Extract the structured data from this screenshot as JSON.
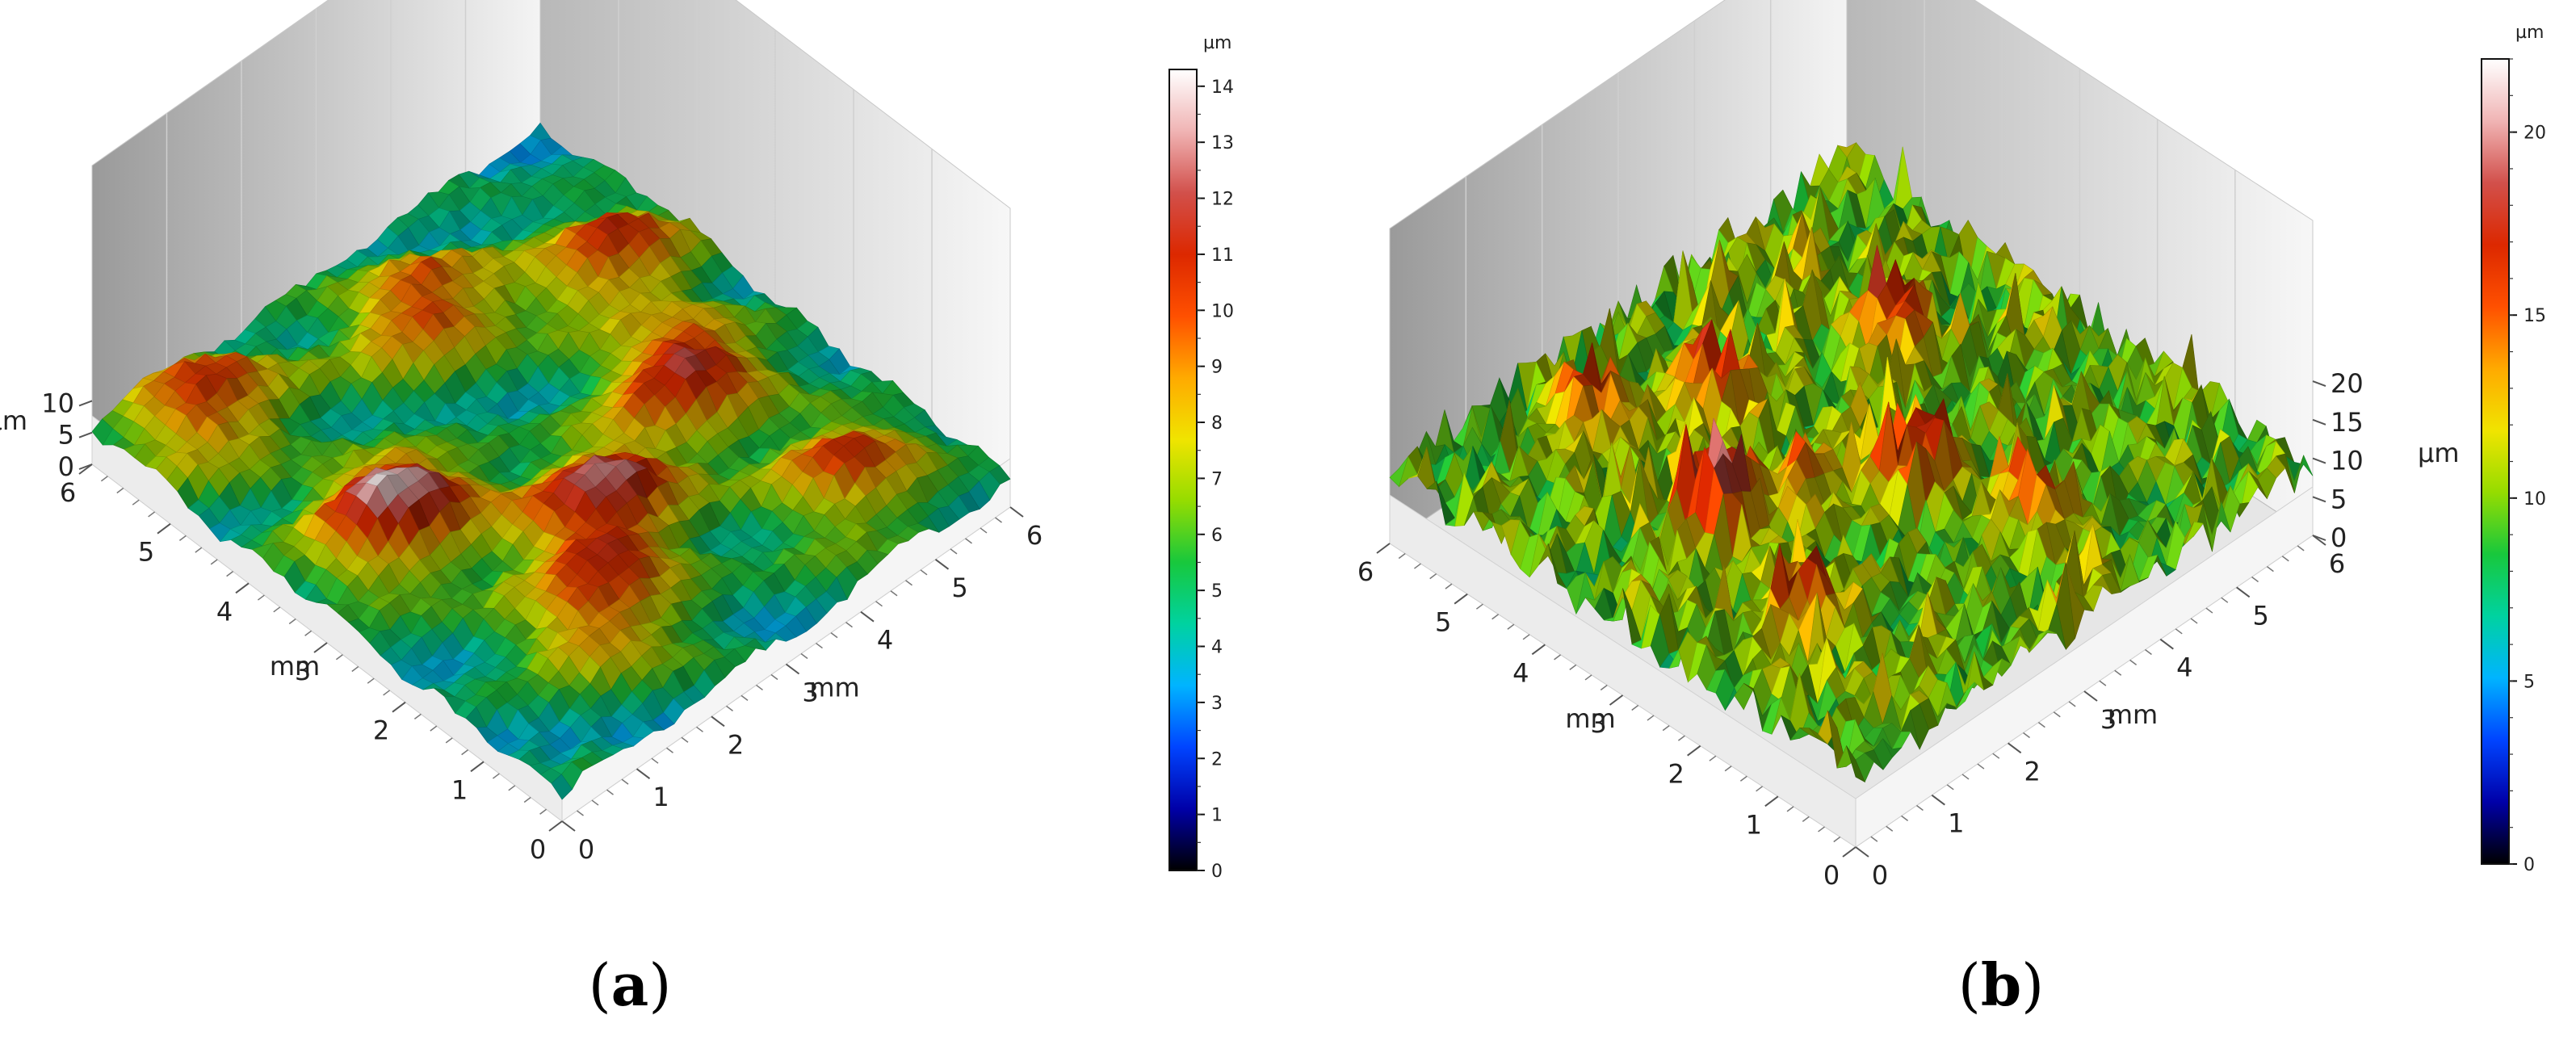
{
  "chart_data": [
    {
      "type": "surface",
      "panel_label": "a",
      "x_axis": {
        "label": "mm",
        "range": [
          0,
          6
        ],
        "ticks": [
          "0",
          "1",
          "2",
          "3",
          "4",
          "5",
          "6"
        ]
      },
      "y_axis": {
        "label": "mm",
        "range": [
          0,
          6
        ],
        "ticks": [
          "0",
          "1",
          "2",
          "3",
          "4",
          "5",
          "6"
        ]
      },
      "z_axis": {
        "label": "µm",
        "range": [
          0,
          14
        ],
        "ticks": [
          "0",
          "5",
          "10"
        ]
      },
      "colorbar": {
        "unit": "µm",
        "range": [
          0,
          14.3
        ],
        "ticks": [
          "0",
          "1",
          "2",
          "3",
          "4",
          "5",
          "6",
          "7",
          "8",
          "9",
          "10",
          "11",
          "12",
          "13",
          "14"
        ],
        "colormap": [
          "#000000",
          "#0000a8",
          "#0044ff",
          "#00b4ff",
          "#00d2a0",
          "#18c83c",
          "#96dc00",
          "#f0e400",
          "#ffaa00",
          "#ff5000",
          "#dc2800",
          "#d2504b",
          "#f0b4b4",
          "#ffffff"
        ]
      },
      "surface_character": "directional ridged texture with several broad peaks",
      "peaks_height_um": [
        13.8,
        12.6,
        12.0,
        11.2,
        11.0,
        10.8,
        10.6,
        10.2
      ]
    },
    {
      "type": "surface",
      "panel_label": "b",
      "x_axis": {
        "label": "mm",
        "range": [
          0,
          6
        ],
        "ticks": [
          "0",
          "1",
          "2",
          "3",
          "4",
          "5",
          "6"
        ]
      },
      "y_axis": {
        "label": "mm",
        "range": [
          0,
          6
        ],
        "ticks": [
          "0",
          "1",
          "2",
          "3",
          "4",
          "5",
          "6"
        ]
      },
      "z_axis": {
        "label": "µm",
        "range": [
          0,
          22
        ],
        "ticks": [
          "0",
          "5",
          "10",
          "15",
          "20"
        ]
      },
      "colorbar": {
        "unit": "µm",
        "range": [
          0,
          22
        ],
        "ticks": [
          "0",
          "5",
          "10",
          "15",
          "20"
        ],
        "colormap": [
          "#000000",
          "#0000a8",
          "#0044ff",
          "#00b4ff",
          "#00d2a0",
          "#18c83c",
          "#96dc00",
          "#f0e400",
          "#ffaa00",
          "#ff5000",
          "#dc2800",
          "#d2504b",
          "#f0b4b4",
          "#ffffff"
        ]
      },
      "surface_character": "dense irregular spiky texture",
      "peaks_height_um": [
        21.5,
        19.0,
        18.5,
        18.0,
        17.5,
        17.0,
        16.5,
        16.0
      ]
    }
  ]
}
